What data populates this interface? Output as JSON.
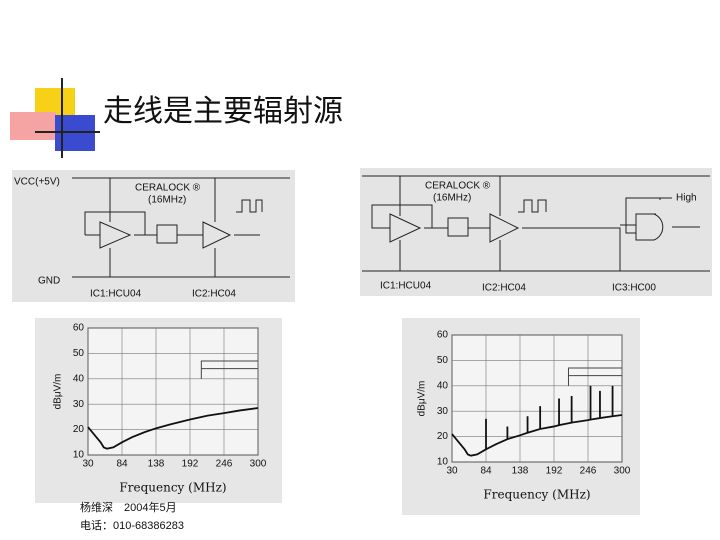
{
  "title": "走线是主要辐射源",
  "circuits": [
    {
      "labels": [
        "VCC(+5V)",
        "CERALOCK ®",
        "(16MHz)",
        "GND",
        "IC1:HCU04",
        "IC2:HC04"
      ]
    },
    {
      "labels": [
        "CERALOCK ®",
        "(16MHz)",
        "High",
        "IC1:HCU04",
        "IC2:HC04",
        "IC3:HC00"
      ]
    }
  ],
  "chart_data": [
    {
      "type": "line",
      "xlabel": "Frequency (MHz)",
      "ylabel": "dBμV/m",
      "xlim": [
        30,
        300
      ],
      "ylim": [
        10,
        60
      ],
      "xticks": [
        30,
        84,
        138,
        192,
        246,
        300
      ],
      "yticks": [
        10,
        20,
        30,
        40,
        50,
        60
      ],
      "series": [
        {
          "color": "#111111",
          "x": [
            30,
            40,
            50,
            55,
            60,
            70,
            84,
            100,
            120,
            138,
            160,
            192,
            220,
            246,
            270,
            300
          ],
          "values": [
            21,
            18,
            15,
            13,
            12.5,
            13,
            15,
            17,
            19,
            20.5,
            22,
            24,
            25.5,
            26.5,
            27.5,
            28.5
          ]
        },
        {
          "color": "#444444",
          "x": [
            210,
            210,
            300
          ],
          "values": [
            40,
            47,
            47
          ]
        },
        {
          "color": "#444444",
          "x": [
            210,
            300
          ],
          "values": [
            44,
            44
          ]
        }
      ]
    },
    {
      "type": "line",
      "xlabel": "Frequency (MHz)",
      "ylabel": "dBμV/m",
      "xlim": [
        30,
        300
      ],
      "ylim": [
        10,
        60
      ],
      "xticks": [
        30,
        84,
        138,
        192,
        246,
        300
      ],
      "yticks": [
        10,
        20,
        30,
        40,
        50,
        60
      ],
      "series": [
        {
          "color": "#111111",
          "x": [
            30,
            40,
            50,
            55,
            60,
            70,
            84,
            84,
            84,
            100,
            118,
            118,
            118,
            138,
            150,
            150,
            150,
            170,
            170,
            170,
            192,
            200,
            200,
            200,
            220,
            220,
            220,
            246,
            250,
            250,
            250,
            265,
            265,
            265,
            285,
            285,
            285,
            300
          ],
          "values": [
            21,
            18,
            15,
            13,
            12.5,
            13,
            15,
            27,
            15,
            17,
            19,
            24,
            19,
            20.5,
            21.5,
            28,
            21.5,
            23,
            32,
            23,
            24,
            24.5,
            35,
            24.5,
            25.5,
            36,
            25.5,
            26.5,
            26.7,
            40,
            26.7,
            27.3,
            38,
            27.3,
            28,
            40,
            28,
            28.5
          ]
        },
        {
          "color": "#444444",
          "x": [
            215,
            215,
            300
          ],
          "values": [
            40,
            47,
            47
          ]
        },
        {
          "color": "#444444",
          "x": [
            215,
            300
          ],
          "values": [
            44,
            44
          ]
        }
      ]
    }
  ],
  "footer": [
    "杨维深　2004年5月",
    "电话：010-68386283"
  ]
}
